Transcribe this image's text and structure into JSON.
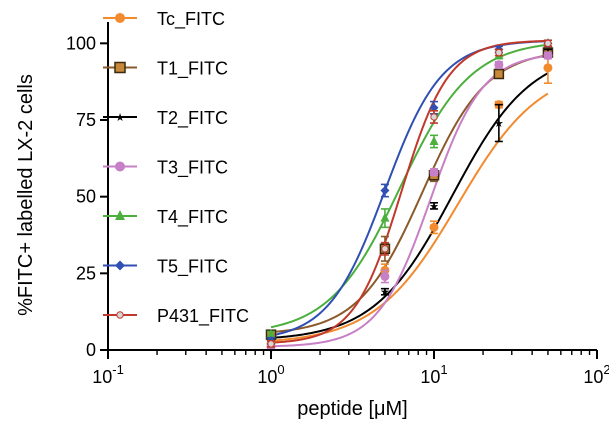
{
  "chart_data": {
    "type": "scatter",
    "xlabel": "peptide [μM]",
    "ylabel": "%FITC+ labelled LX-2 cells",
    "xscale": "log",
    "xlim": [
      0.1,
      100
    ],
    "ylim": [
      0,
      105
    ],
    "xticks": [
      {
        "value": 0.1,
        "base": "10",
        "exp": "-1"
      },
      {
        "value": 1,
        "base": "10",
        "exp": "0"
      },
      {
        "value": 10,
        "base": "10",
        "exp": "1"
      },
      {
        "value": 100,
        "base": "10",
        "exp": "2"
      }
    ],
    "yticks": [
      0,
      25,
      50,
      75,
      100
    ],
    "legend_position": "top-center",
    "series": [
      {
        "name": "Tc_FITC",
        "color": "#f28a2e",
        "marker": "circle",
        "line": true,
        "x": [
          1,
          5,
          10,
          25,
          50
        ],
        "y": [
          2,
          26,
          40,
          80,
          92
        ],
        "err": [
          1,
          2,
          2,
          1,
          5
        ],
        "ec50": 14,
        "hill": 1.7
      },
      {
        "name": "T1_FITC",
        "color": "#8b5a2b",
        "marker": "square",
        "line": false,
        "x": [
          1,
          5,
          10,
          25,
          50
        ],
        "y": [
          5,
          33,
          57,
          90,
          97
        ],
        "err": [
          1,
          4,
          2,
          1,
          1
        ],
        "ec50": 8.5,
        "hill": 2.2
      },
      {
        "name": "T2_FITC",
        "color": "#000000",
        "marker": "star",
        "line": true,
        "x": [
          1,
          5,
          10,
          25,
          50
        ],
        "y": [
          3,
          19,
          47,
          74,
          97
        ],
        "err": [
          1,
          1,
          1,
          6,
          1
        ],
        "ec50": 13,
        "hill": 1.8
      },
      {
        "name": "T3_FITC",
        "color": "#c77fc5",
        "marker": "circle",
        "line": true,
        "x": [
          1,
          5,
          10,
          25,
          50
        ],
        "y": [
          1,
          24,
          58,
          93,
          96
        ],
        "err": [
          1,
          2,
          1,
          1,
          1
        ],
        "ec50": 9.5,
        "hill": 2.7
      },
      {
        "name": "T4_FITC",
        "color": "#4caf3d",
        "marker": "triangle",
        "line": true,
        "x": [
          1,
          5,
          10,
          25,
          50
        ],
        "y": [
          5,
          43,
          68,
          96,
          100
        ],
        "err": [
          1,
          3,
          2,
          1,
          1
        ],
        "ec50": 6.2,
        "hill": 2.0
      },
      {
        "name": "T5_FITC",
        "color": "#2f4fb3",
        "marker": "diamond",
        "line": true,
        "x": [
          1,
          5,
          10,
          25,
          50
        ],
        "y": [
          3,
          52,
          79,
          98,
          100
        ],
        "err": [
          1,
          2,
          2,
          1,
          1
        ],
        "ec50": 5.0,
        "hill": 2.5
      },
      {
        "name": "P431_FITC",
        "color": "#c0392b",
        "marker": "circle-small",
        "line": true,
        "x": [
          1,
          5,
          10,
          25,
          50
        ],
        "y": [
          2,
          33,
          76,
          97,
          100
        ],
        "err": [
          1,
          2,
          2,
          1,
          1
        ],
        "ec50": 6.3,
        "hill": 3.0
      }
    ]
  }
}
